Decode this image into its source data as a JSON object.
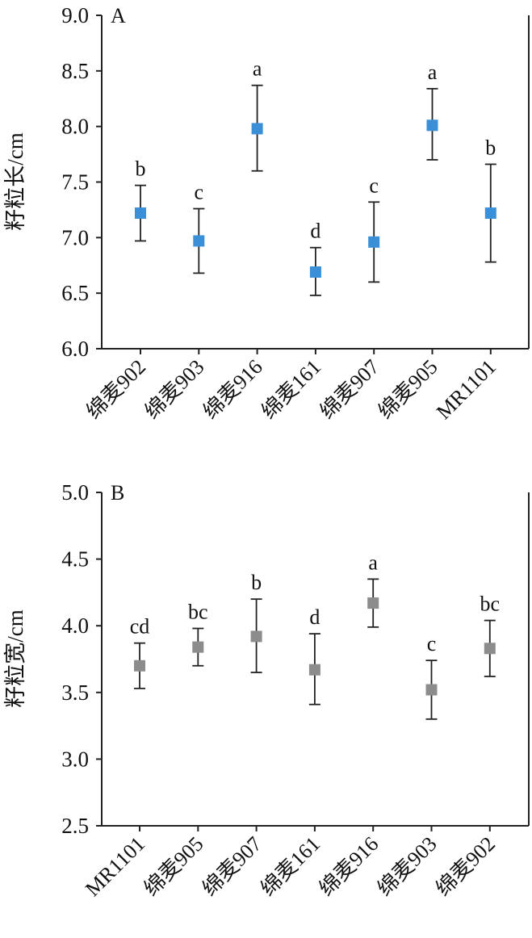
{
  "chart_data": [
    {
      "type": "scatter",
      "panel_label": "A",
      "ylabel": "籽粒长/cm",
      "xlabel": "",
      "ylim": [
        6.0,
        9.0
      ],
      "yticks": [
        "6.0",
        "6.5",
        "7.0",
        "7.5",
        "8.0",
        "8.5",
        "9.0"
      ],
      "categories": [
        "绵麦902",
        "绵麦903",
        "绵麦916",
        "绵麦161",
        "绵麦907",
        "绵麦905",
        "MR1101"
      ],
      "values": [
        7.22,
        6.97,
        7.98,
        6.69,
        6.96,
        8.01,
        7.22
      ],
      "error_low": [
        6.97,
        6.68,
        7.6,
        6.48,
        6.6,
        7.7,
        6.78
      ],
      "error_high": [
        7.47,
        7.26,
        8.37,
        6.91,
        7.32,
        8.34,
        7.66
      ],
      "significance": [
        "b",
        "c",
        "a",
        "d",
        "c",
        "a",
        "b"
      ],
      "marker_color": "#3a8fd6",
      "grid": false
    },
    {
      "type": "scatter",
      "panel_label": "B",
      "ylabel": "籽粒宽/cm",
      "xlabel": "",
      "ylim": [
        2.5,
        5.0
      ],
      "yticks": [
        "2.5",
        "3.0",
        "3.5",
        "4.0",
        "4.5",
        "5.0"
      ],
      "categories": [
        "MR1101",
        "绵麦905",
        "绵麦907",
        "绵麦161",
        "绵麦916",
        "绵麦903",
        "绵麦902"
      ],
      "values": [
        3.7,
        3.84,
        3.92,
        3.67,
        4.17,
        3.52,
        3.83
      ],
      "error_low": [
        3.53,
        3.7,
        3.65,
        3.41,
        3.99,
        3.3,
        3.62
      ],
      "error_high": [
        3.87,
        3.98,
        4.2,
        3.94,
        4.35,
        3.74,
        4.04
      ],
      "significance": [
        "cd",
        "bc",
        "b",
        "d",
        "a",
        "c",
        "bc"
      ],
      "marker_color": "#8c8c8c",
      "grid": false
    }
  ]
}
